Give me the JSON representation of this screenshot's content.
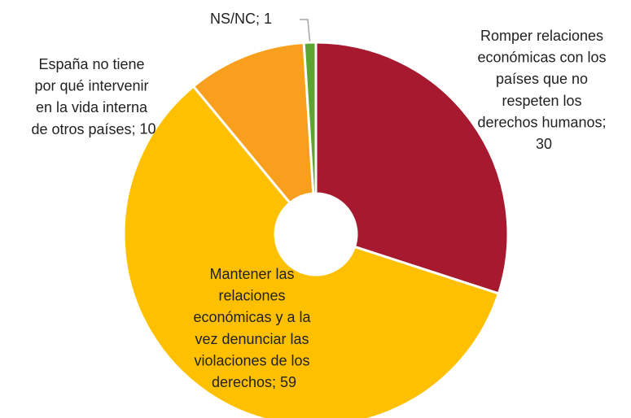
{
  "chart_data": {
    "type": "doughnut",
    "categories": [
      "Romper relaciones económicas con los países que no respeten los derechos humanos",
      "Mantener las relaciones económicas y a la vez denunciar las violaciones de los derechos",
      "España no tiene por qué intervenir en la vida interna de otros países",
      "NS/NC"
    ],
    "values": [
      30,
      59,
      10,
      1
    ],
    "colors": [
      "#a6192e",
      "#ffc000",
      "#f8a01e",
      "#5aa532"
    ],
    "label_separator": "; "
  }
}
